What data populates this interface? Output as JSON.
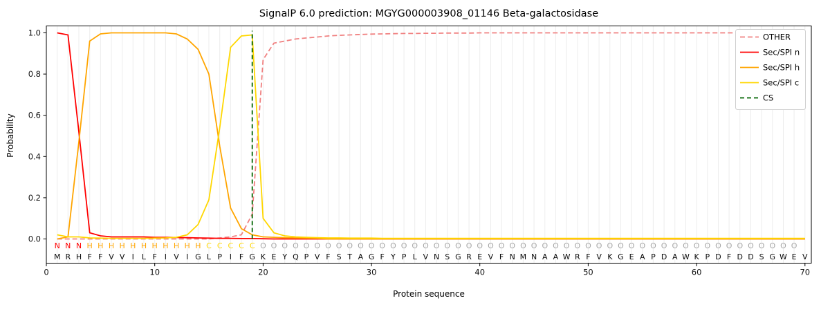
{
  "chart_data": {
    "type": "line",
    "title": "SignalP 6.0 prediction: MGYG000003908_01146 Beta-galactosidase",
    "xlabel": "Protein sequence",
    "ylabel": "Probability",
    "xlim": [
      0,
      70.3
    ],
    "ylim": [
      -0.12,
      1.03
    ],
    "x_ticks": [
      0,
      10,
      20,
      30,
      40,
      50,
      60,
      70
    ],
    "y_ticks": [
      0.0,
      0.2,
      0.4,
      0.6,
      0.8,
      1.0
    ],
    "grid": "vertical-per-residue",
    "legend_position": "upper right",
    "sequence": "MRHFFVVILFIVIGLPIFGKEYQPVFSTAGFYPLVNSGREVFNMNAAWRFVKGEAPDAWKPDFDDSGWEV",
    "region_labels": "NNNHHHHHHHHHHHCCCCCOOOOOOOOOOOOOOOOOOOOOOOOOOOOOOOOOOOOOOOOOOOOOOOOOO",
    "region_colors": {
      "N": "#ff0000",
      "H": "#ffa500",
      "C": "#ffd700",
      "O": "#a6a6a6"
    },
    "cs": {
      "position": 19,
      "color": "#006400",
      "dasharray": "6 4"
    },
    "series": [
      {
        "name": "OTHER",
        "color": "#f08080",
        "dasharray": "7 4",
        "values": [
          0,
          0,
          0,
          0,
          0,
          0,
          0,
          0,
          0,
          0,
          0,
          0,
          0,
          0,
          0,
          0.005,
          0.01,
          0.02,
          0.12,
          0.87,
          0.95,
          0.96,
          0.97,
          0.975,
          0.98,
          0.985,
          0.988,
          0.99,
          0.992,
          0.994,
          0.995,
          0.996,
          0.997,
          0.997,
          0.998,
          0.998,
          0.999,
          0.999,
          0.999,
          1,
          1,
          1,
          1,
          1,
          1,
          1,
          1,
          1,
          1,
          1,
          1,
          1,
          1,
          1,
          1,
          1,
          1,
          1,
          1,
          1,
          1,
          1,
          1,
          1,
          1,
          1,
          1,
          1,
          1,
          1
        ]
      },
      {
        "name": "Sec/SPI n",
        "color": "#ff0000",
        "dasharray": "none",
        "values": [
          1,
          0.99,
          0.52,
          0.03,
          0.015,
          0.01,
          0.01,
          0.01,
          0.01,
          0.008,
          0.008,
          0.007,
          0.006,
          0.005,
          0.004,
          0.003,
          0.003,
          0.002,
          0.002,
          0.001,
          0,
          0,
          0,
          0,
          0,
          0,
          0,
          0,
          0,
          0,
          0,
          0,
          0,
          0,
          0,
          0,
          0,
          0,
          0,
          0,
          0,
          0,
          0,
          0,
          0,
          0,
          0,
          0,
          0,
          0,
          0,
          0,
          0,
          0,
          0,
          0,
          0,
          0,
          0,
          0,
          0,
          0,
          0,
          0,
          0,
          0,
          0,
          0,
          0,
          0
        ]
      },
      {
        "name": "Sec/SPI h",
        "color": "#ffa500",
        "dasharray": "none",
        "values": [
          0,
          0.01,
          0.47,
          0.96,
          0.995,
          1,
          1,
          1,
          1,
          1,
          1,
          0.995,
          0.97,
          0.92,
          0.8,
          0.45,
          0.15,
          0.05,
          0.02,
          0.01,
          0.008,
          0.006,
          0.005,
          0.004,
          0.003,
          0,
          0,
          0,
          0,
          0,
          0,
          0,
          0,
          0,
          0,
          0,
          0,
          0,
          0,
          0,
          0,
          0,
          0,
          0,
          0,
          0,
          0,
          0,
          0,
          0,
          0,
          0,
          0,
          0,
          0,
          0,
          0,
          0,
          0,
          0,
          0,
          0,
          0,
          0,
          0,
          0,
          0,
          0,
          0,
          0
        ]
      },
      {
        "name": "Sec/SPI c",
        "color": "#ffd700",
        "dasharray": "none",
        "values": [
          0.02,
          0.01,
          0.01,
          0.005,
          0.004,
          0.003,
          0.003,
          0.003,
          0.003,
          0.004,
          0.005,
          0.008,
          0.02,
          0.07,
          0.19,
          0.54,
          0.93,
          0.985,
          0.99,
          0.1,
          0.03,
          0.015,
          0.01,
          0.008,
          0.006,
          0.005,
          0.005,
          0.004,
          0.004,
          0.004,
          0.003,
          0.003,
          0.003,
          0.003,
          0.003,
          0.003,
          0.003,
          0.003,
          0.003,
          0.003,
          0.003,
          0.003,
          0.003,
          0.003,
          0.003,
          0.003,
          0.003,
          0.003,
          0.003,
          0.003,
          0.003,
          0.003,
          0.003,
          0.003,
          0.003,
          0.003,
          0.003,
          0.003,
          0.003,
          0.003,
          0.003,
          0.003,
          0.003,
          0.003,
          0.003,
          0.003,
          0.003,
          0.003,
          0.003,
          0.003
        ]
      }
    ],
    "legend": [
      {
        "label": "OTHER",
        "color": "#f08080",
        "dasharray": "7 4"
      },
      {
        "label": "Sec/SPI n",
        "color": "#ff0000",
        "dasharray": "none"
      },
      {
        "label": "Sec/SPI h",
        "color": "#ffa500",
        "dasharray": "none"
      },
      {
        "label": "Sec/SPI c",
        "color": "#ffd700",
        "dasharray": "none"
      },
      {
        "label": "CS",
        "color": "#006400",
        "dasharray": "6 4"
      }
    ]
  }
}
